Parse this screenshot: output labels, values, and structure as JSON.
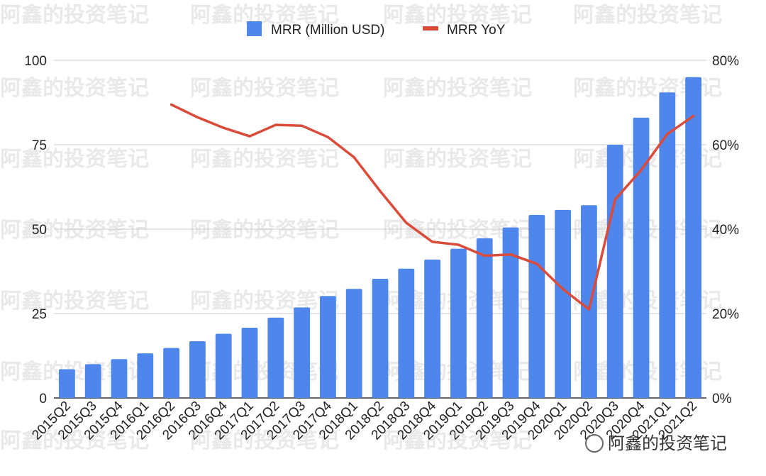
{
  "watermark": "阿鑫的投资笔记",
  "credit": {
    "text": "阿鑫的投资笔记"
  },
  "colors": {
    "bar": "#4f86ec",
    "line": "#db4b3a",
    "grid": "#cccccc",
    "text": "#222222",
    "watermark": "#e9e9e9"
  },
  "legend": {
    "bar_label": "MRR (Million USD)",
    "line_label": "MRR YoY"
  },
  "chart_data": {
    "type": "bar",
    "categories": [
      "2015Q2",
      "2015Q3",
      "2015Q4",
      "2016Q1",
      "2016Q2",
      "2016Q3",
      "2016Q4",
      "2017Q1",
      "2017Q2",
      "2017Q3",
      "2017Q4",
      "2018Q1",
      "2018Q2",
      "2018Q3",
      "2018Q4",
      "2019Q1",
      "2019Q2",
      "2019Q3",
      "2019Q4",
      "2020Q1",
      "2020Q2",
      "2020Q3",
      "2020Q4",
      "2021Q1",
      "2021Q2"
    ],
    "series": [
      {
        "name": "MRR (Million USD)",
        "type": "bar",
        "axis": "left",
        "values": [
          8.5,
          10,
          11.5,
          13.2,
          14.8,
          16.8,
          19,
          20.8,
          23.8,
          26.8,
          30.2,
          32.3,
          35.3,
          38.3,
          41,
          44.2,
          47.3,
          50.5,
          54.2,
          55.7,
          57.1,
          75,
          83,
          90.5,
          95
        ]
      },
      {
        "name": "MRR YoY",
        "type": "line",
        "axis": "right",
        "unit": "%",
        "values": [
          null,
          null,
          null,
          null,
          69.5,
          66.5,
          64,
          62,
          64.7,
          64.5,
          61.8,
          57,
          49,
          41.5,
          37,
          36.3,
          33.7,
          34,
          31.8,
          25.8,
          21,
          47,
          54,
          62.5,
          66.8
        ]
      }
    ],
    "y_left": {
      "ylim": [
        0,
        100
      ],
      "ticks": [
        0,
        25,
        50,
        75,
        100
      ],
      "tick_labels": [
        "0",
        "25",
        "50",
        "75",
        "100"
      ]
    },
    "y_right": {
      "ylim": [
        0,
        80
      ],
      "ticks": [
        0,
        20,
        40,
        60,
        80
      ],
      "tick_labels": [
        "0%",
        "20%",
        "40%",
        "60%",
        "80%"
      ]
    },
    "title": "",
    "xlabel": "",
    "ylabel": "",
    "grid": true,
    "legend_position": "top-center"
  }
}
